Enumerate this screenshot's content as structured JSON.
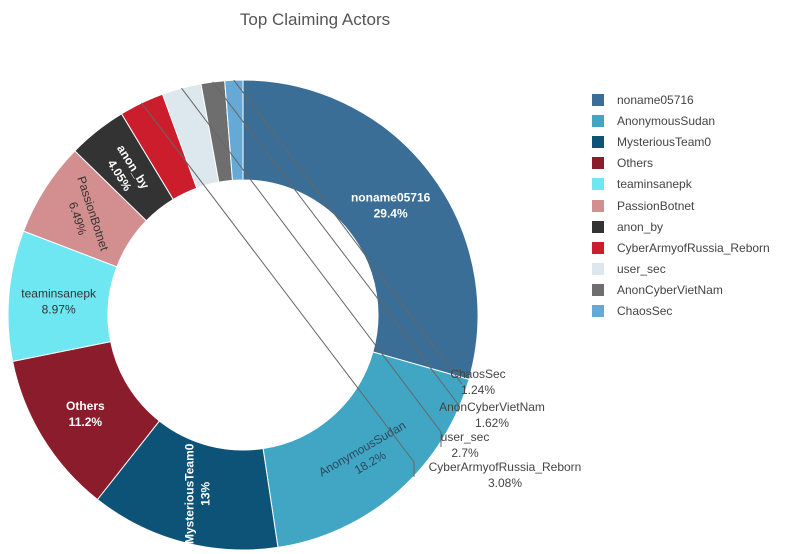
{
  "chart_data": {
    "type": "pie",
    "title": "Top Claiming Actors",
    "slices": [
      {
        "name": "noname05716",
        "value": 29.4,
        "label": "29.4%",
        "color": "#3a6e96"
      },
      {
        "name": "AnonymousSudan",
        "value": 18.2,
        "label": "18.2%",
        "color": "#40a6c4"
      },
      {
        "name": "MysteriousTeam0",
        "value": 13,
        "label": "13%",
        "color": "#0d5378"
      },
      {
        "name": "Others",
        "value": 11.2,
        "label": "11.2%",
        "color": "#8b1c2b"
      },
      {
        "name": "teaminsanepk",
        "value": 8.97,
        "label": "8.97%",
        "color": "#6ee7f3"
      },
      {
        "name": "PassionBotnet",
        "value": 6.49,
        "label": "6.49%",
        "color": "#d38f8f"
      },
      {
        "name": "anon_by",
        "value": 4.05,
        "label": "4.05%",
        "color": "#333333"
      },
      {
        "name": "CyberArmyofRussia_Reborn",
        "value": 3.08,
        "label": "3.08%",
        "color": "#cc1d2d"
      },
      {
        "name": "user_sec",
        "value": 2.7,
        "label": "2.7%",
        "color": "#dde7ee"
      },
      {
        "name": "AnonCyberVietNam",
        "value": 1.62,
        "label": "1.62%",
        "color": "#6e6e6e"
      },
      {
        "name": "ChaosSec",
        "value": 1.24,
        "label": "1.24%",
        "color": "#66a9d6"
      }
    ],
    "legend_position": "right"
  }
}
